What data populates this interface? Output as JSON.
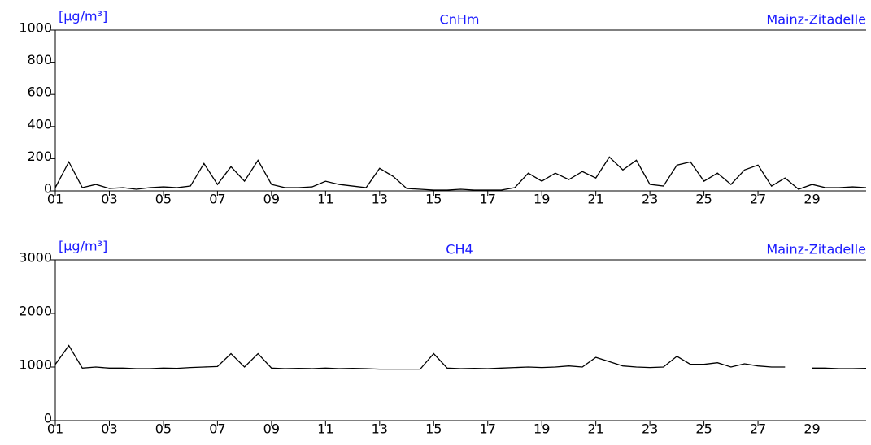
{
  "chart_data": [
    {
      "type": "line",
      "unit": "[μg/m³]",
      "title": "CnHm",
      "station": "Mainz-Zitadelle",
      "xlim": [
        1,
        31
      ],
      "ylim": [
        0,
        1000
      ],
      "yticks": [
        0,
        200,
        400,
        600,
        800,
        1000
      ],
      "xticks": [
        {
          "value": 1,
          "label": "01"
        },
        {
          "value": 3,
          "label": "03"
        },
        {
          "value": 5,
          "label": "05"
        },
        {
          "value": 7,
          "label": "07"
        },
        {
          "value": 9,
          "label": "09"
        },
        {
          "value": 11,
          "label": "11"
        },
        {
          "value": 13,
          "label": "13"
        },
        {
          "value": 15,
          "label": "15"
        },
        {
          "value": 17,
          "label": "17"
        },
        {
          "value": 19,
          "label": "19"
        },
        {
          "value": 21,
          "label": "21"
        },
        {
          "value": 23,
          "label": "23"
        },
        {
          "value": 25,
          "label": "25"
        },
        {
          "value": 27,
          "label": "27"
        },
        {
          "value": 29,
          "label": "29"
        }
      ],
      "x": [
        1,
        1.5,
        2,
        2.5,
        3,
        3.5,
        4,
        4.5,
        5,
        5.5,
        6,
        6.5,
        7,
        7.5,
        8,
        8.5,
        9,
        9.5,
        10,
        10.5,
        11,
        11.5,
        12,
        12.5,
        13,
        13.5,
        14,
        14.5,
        15,
        15.5,
        16,
        16.5,
        17,
        17.5,
        18,
        18.5,
        19,
        19.5,
        20,
        20.5,
        21,
        21.5,
        22,
        22.5,
        23,
        23.5,
        24,
        24.5,
        25,
        25.5,
        26,
        26.5,
        27,
        27.5,
        28,
        28.5,
        29,
        29.5,
        30,
        30.5,
        31
      ],
      "series": [
        {
          "color": "#000000",
          "values": [
            20,
            180,
            20,
            40,
            15,
            20,
            10,
            20,
            25,
            20,
            30,
            170,
            40,
            150,
            60,
            190,
            40,
            20,
            20,
            25,
            60,
            40,
            30,
            20,
            140,
            90,
            15,
            10,
            5,
            5,
            10,
            5,
            5,
            5,
            20,
            110,
            60,
            110,
            70,
            120,
            80,
            210,
            130,
            190,
            40,
            30,
            160,
            180,
            60,
            110,
            40,
            130,
            160,
            30,
            80,
            10,
            40,
            20,
            20,
            25,
            20
          ]
        }
      ]
    },
    {
      "type": "line",
      "unit": "[μg/m³]",
      "title": "CH4",
      "station": "Mainz-Zitadelle",
      "xlim": [
        1,
        31
      ],
      "ylim": [
        0,
        3000
      ],
      "yticks": [
        0,
        1000,
        2000,
        3000
      ],
      "xticks": [
        {
          "value": 1,
          "label": "01"
        },
        {
          "value": 3,
          "label": "03"
        },
        {
          "value": 5,
          "label": "05"
        },
        {
          "value": 7,
          "label": "07"
        },
        {
          "value": 9,
          "label": "09"
        },
        {
          "value": 11,
          "label": "11"
        },
        {
          "value": 13,
          "label": "13"
        },
        {
          "value": 15,
          "label": "15"
        },
        {
          "value": 17,
          "label": "17"
        },
        {
          "value": 19,
          "label": "19"
        },
        {
          "value": 21,
          "label": "21"
        },
        {
          "value": 23,
          "label": "23"
        },
        {
          "value": 25,
          "label": "25"
        },
        {
          "value": 27,
          "label": "27"
        },
        {
          "value": 29,
          "label": "29"
        }
      ],
      "x": [
        1,
        1.5,
        2,
        2.5,
        3,
        3.5,
        4,
        4.5,
        5,
        5.5,
        6,
        6.5,
        7,
        7.5,
        8,
        8.5,
        9,
        9.5,
        10,
        10.5,
        11,
        11.5,
        12,
        12.5,
        13,
        13.5,
        14,
        14.5,
        15,
        15.5,
        16,
        16.5,
        17,
        17.5,
        18,
        18.5,
        19,
        19.5,
        20,
        20.5,
        21,
        21.5,
        22,
        22.5,
        23,
        23.5,
        24,
        24.5,
        25,
        25.5,
        26,
        26.5,
        27,
        27.5,
        28,
        28.5,
        29,
        29.5,
        30,
        30.5,
        31
      ],
      "series": [
        {
          "color": "#000000",
          "values": [
            1050,
            1400,
            980,
            1000,
            980,
            980,
            970,
            970,
            980,
            975,
            990,
            1000,
            1010,
            1250,
            1000,
            1250,
            980,
            970,
            975,
            970,
            980,
            970,
            975,
            970,
            960,
            960,
            960,
            960,
            1250,
            980,
            970,
            975,
            970,
            980,
            990,
            1000,
            990,
            1000,
            1020,
            1000,
            1180,
            1100,
            1020,
            1000,
            990,
            1000,
            1200,
            1050,
            1050,
            1080,
            1000,
            1060,
            1020,
            1000,
            1000,
            null,
            980,
            980,
            970,
            970,
            975
          ]
        }
      ]
    }
  ]
}
